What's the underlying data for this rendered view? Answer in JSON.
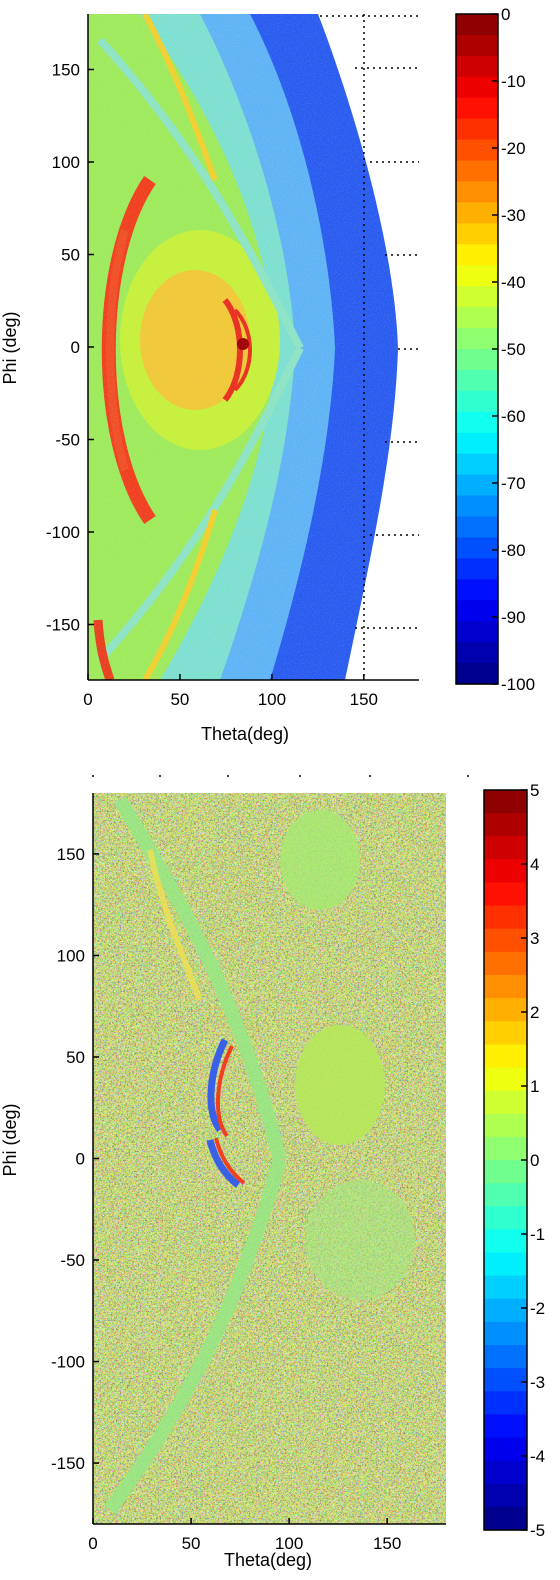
{
  "chart_data": [
    {
      "type": "heatmap",
      "title": "",
      "xlabel": "Theta(deg)",
      "ylabel": "Phi (deg)",
      "xlim": [
        0,
        180
      ],
      "ylim": [
        -180,
        180
      ],
      "xticks": [
        0,
        50,
        100,
        150
      ],
      "yticks": [
        150,
        100,
        50,
        0,
        -50,
        -100,
        -150
      ],
      "grid": "dotted, right side",
      "colormap": "jet",
      "colorbar": {
        "min": -100,
        "max": 0,
        "ticks": [
          0,
          -10,
          -20,
          -30,
          -40,
          -50,
          -60,
          -70,
          -80,
          -90,
          -100
        ],
        "levels": 32
      },
      "valid_region": "theta < ~150-165 deg; white (no data) beyond",
      "features": [
        {
          "desc": "strong red arc",
          "theta_center": 18,
          "value": -20
        },
        {
          "desc": "red spot",
          "theta": 85,
          "phi": 0,
          "value": -5
        }
      ]
    },
    {
      "type": "heatmap",
      "title": "",
      "xlabel": "Theta(deg)",
      "ylabel": "Phi (deg)",
      "xlim": [
        0,
        180
      ],
      "ylim": [
        -180,
        180
      ],
      "xticks": [
        0,
        50,
        100,
        150
      ],
      "yticks": [
        150,
        100,
        50,
        0,
        -50,
        -100,
        -150
      ],
      "colormap": "jet",
      "colorbar": {
        "min": -5,
        "max": 5,
        "ticks": [
          5,
          4,
          3,
          2,
          1,
          0,
          -1,
          -2,
          -3,
          -4,
          -5
        ],
        "levels": 32
      },
      "noise": "high, speckled"
    }
  ]
}
